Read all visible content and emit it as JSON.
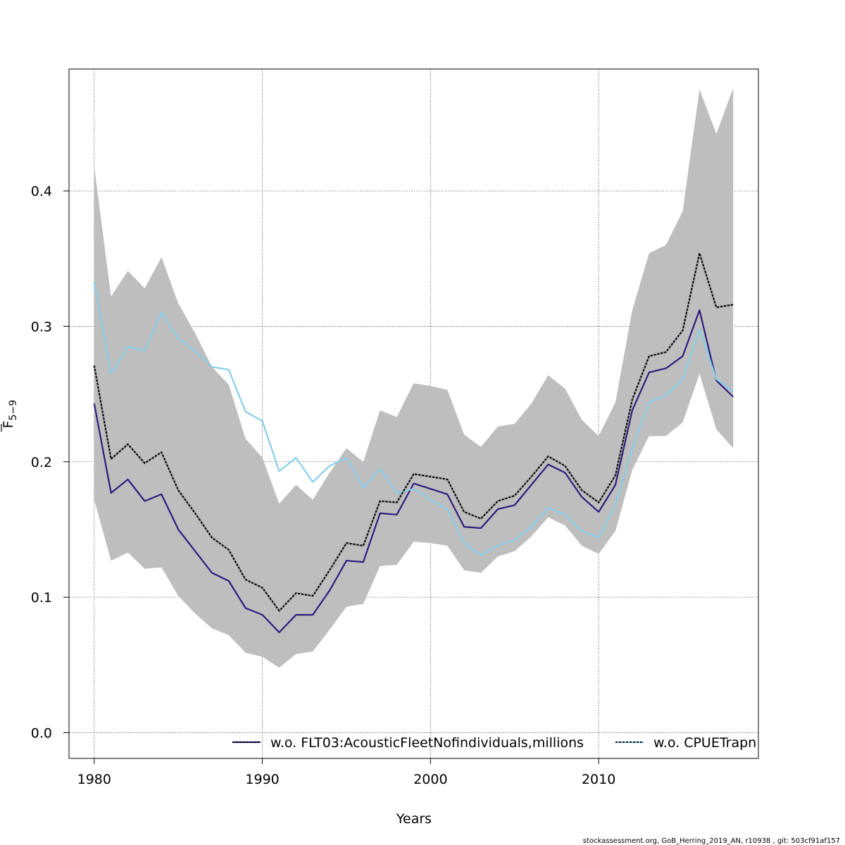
{
  "chart_data": {
    "type": "line",
    "title": "",
    "xlabel": "Years",
    "ylabel": "F",
    "ylabel_sub": "5−9",
    "xlim": [
      1978.5,
      2019.5
    ],
    "ylim": [
      -0.019,
      0.49
    ],
    "xticks": [
      1980,
      1990,
      2000,
      2010
    ],
    "yticks": [
      0.0,
      0.1,
      0.2,
      0.3,
      0.4
    ],
    "ytick_labels": [
      "0.0",
      "0.1",
      "0.2",
      "0.3",
      "0.4"
    ],
    "grid": true,
    "legend_position": "bottom",
    "x": [
      1980,
      1981,
      1982,
      1983,
      1984,
      1985,
      1986,
      1987,
      1988,
      1989,
      1990,
      1991,
      1992,
      1993,
      1994,
      1995,
      1996,
      1997,
      1998,
      1999,
      2000,
      2001,
      2002,
      2003,
      2004,
      2005,
      2006,
      2007,
      2008,
      2009,
      2010,
      2011,
      2012,
      2013,
      2014,
      2015,
      2016,
      2017,
      2018
    ],
    "band": {
      "color": "#bebebe",
      "upper": [
        0.418,
        0.322,
        0.341,
        0.328,
        0.351,
        0.317,
        0.295,
        0.27,
        0.257,
        0.217,
        0.203,
        0.169,
        0.183,
        0.172,
        0.192,
        0.21,
        0.2,
        0.238,
        0.233,
        0.258,
        0.256,
        0.253,
        0.22,
        0.211,
        0.226,
        0.228,
        0.243,
        0.264,
        0.254,
        0.231,
        0.219,
        0.244,
        0.312,
        0.354,
        0.36,
        0.385,
        0.475,
        0.442,
        0.476
      ],
      "lower": [
        0.172,
        0.127,
        0.133,
        0.121,
        0.122,
        0.101,
        0.088,
        0.077,
        0.072,
        0.059,
        0.056,
        0.048,
        0.058,
        0.06,
        0.076,
        0.093,
        0.095,
        0.123,
        0.124,
        0.141,
        0.14,
        0.138,
        0.12,
        0.118,
        0.13,
        0.134,
        0.145,
        0.159,
        0.153,
        0.138,
        0.132,
        0.149,
        0.194,
        0.219,
        0.219,
        0.229,
        0.265,
        0.224,
        0.21
      ]
    },
    "series": [
      {
        "name": "w.o. FLT03:AcousticFleetNofindividuals,millions",
        "color": "#2e1a7e",
        "values": [
          0.243,
          0.177,
          0.187,
          0.171,
          0.176,
          0.15,
          0.134,
          0.118,
          0.112,
          0.092,
          0.087,
          0.074,
          0.087,
          0.087,
          0.105,
          0.127,
          0.126,
          0.162,
          0.161,
          0.184,
          0.18,
          0.176,
          0.152,
          0.151,
          0.165,
          0.168,
          0.183,
          0.198,
          0.192,
          0.174,
          0.163,
          0.183,
          0.238,
          0.266,
          0.269,
          0.278,
          0.312,
          0.26,
          0.248
        ]
      },
      {
        "name": "w.o. CPUETrapn",
        "color": "#87ceeb",
        "values": [
          0.333,
          0.265,
          0.285,
          0.282,
          0.31,
          0.291,
          0.282,
          0.27,
          0.268,
          0.237,
          0.23,
          0.193,
          0.203,
          0.185,
          0.197,
          0.203,
          0.181,
          0.195,
          0.177,
          0.18,
          0.172,
          0.165,
          0.14,
          0.131,
          0.138,
          0.142,
          0.152,
          0.166,
          0.161,
          0.149,
          0.144,
          0.168,
          0.21,
          0.244,
          0.249,
          0.261,
          0.298,
          0.261,
          0.252
        ]
      },
      {
        "name": "",
        "color": "#000000",
        "dashed": true,
        "values": [
          0.271,
          0.202,
          0.213,
          0.199,
          0.207,
          0.179,
          0.162,
          0.144,
          0.135,
          0.113,
          0.107,
          0.09,
          0.103,
          0.101,
          0.12,
          0.14,
          0.138,
          0.171,
          0.17,
          0.191,
          0.189,
          0.187,
          0.163,
          0.158,
          0.171,
          0.175,
          0.189,
          0.204,
          0.197,
          0.179,
          0.17,
          0.19,
          0.246,
          0.278,
          0.281,
          0.297,
          0.354,
          0.314,
          0.316
        ]
      }
    ]
  },
  "footer": "stockassessment.org, GoB_Herring_2019_AN, r10938 , git: 503cf91af157"
}
